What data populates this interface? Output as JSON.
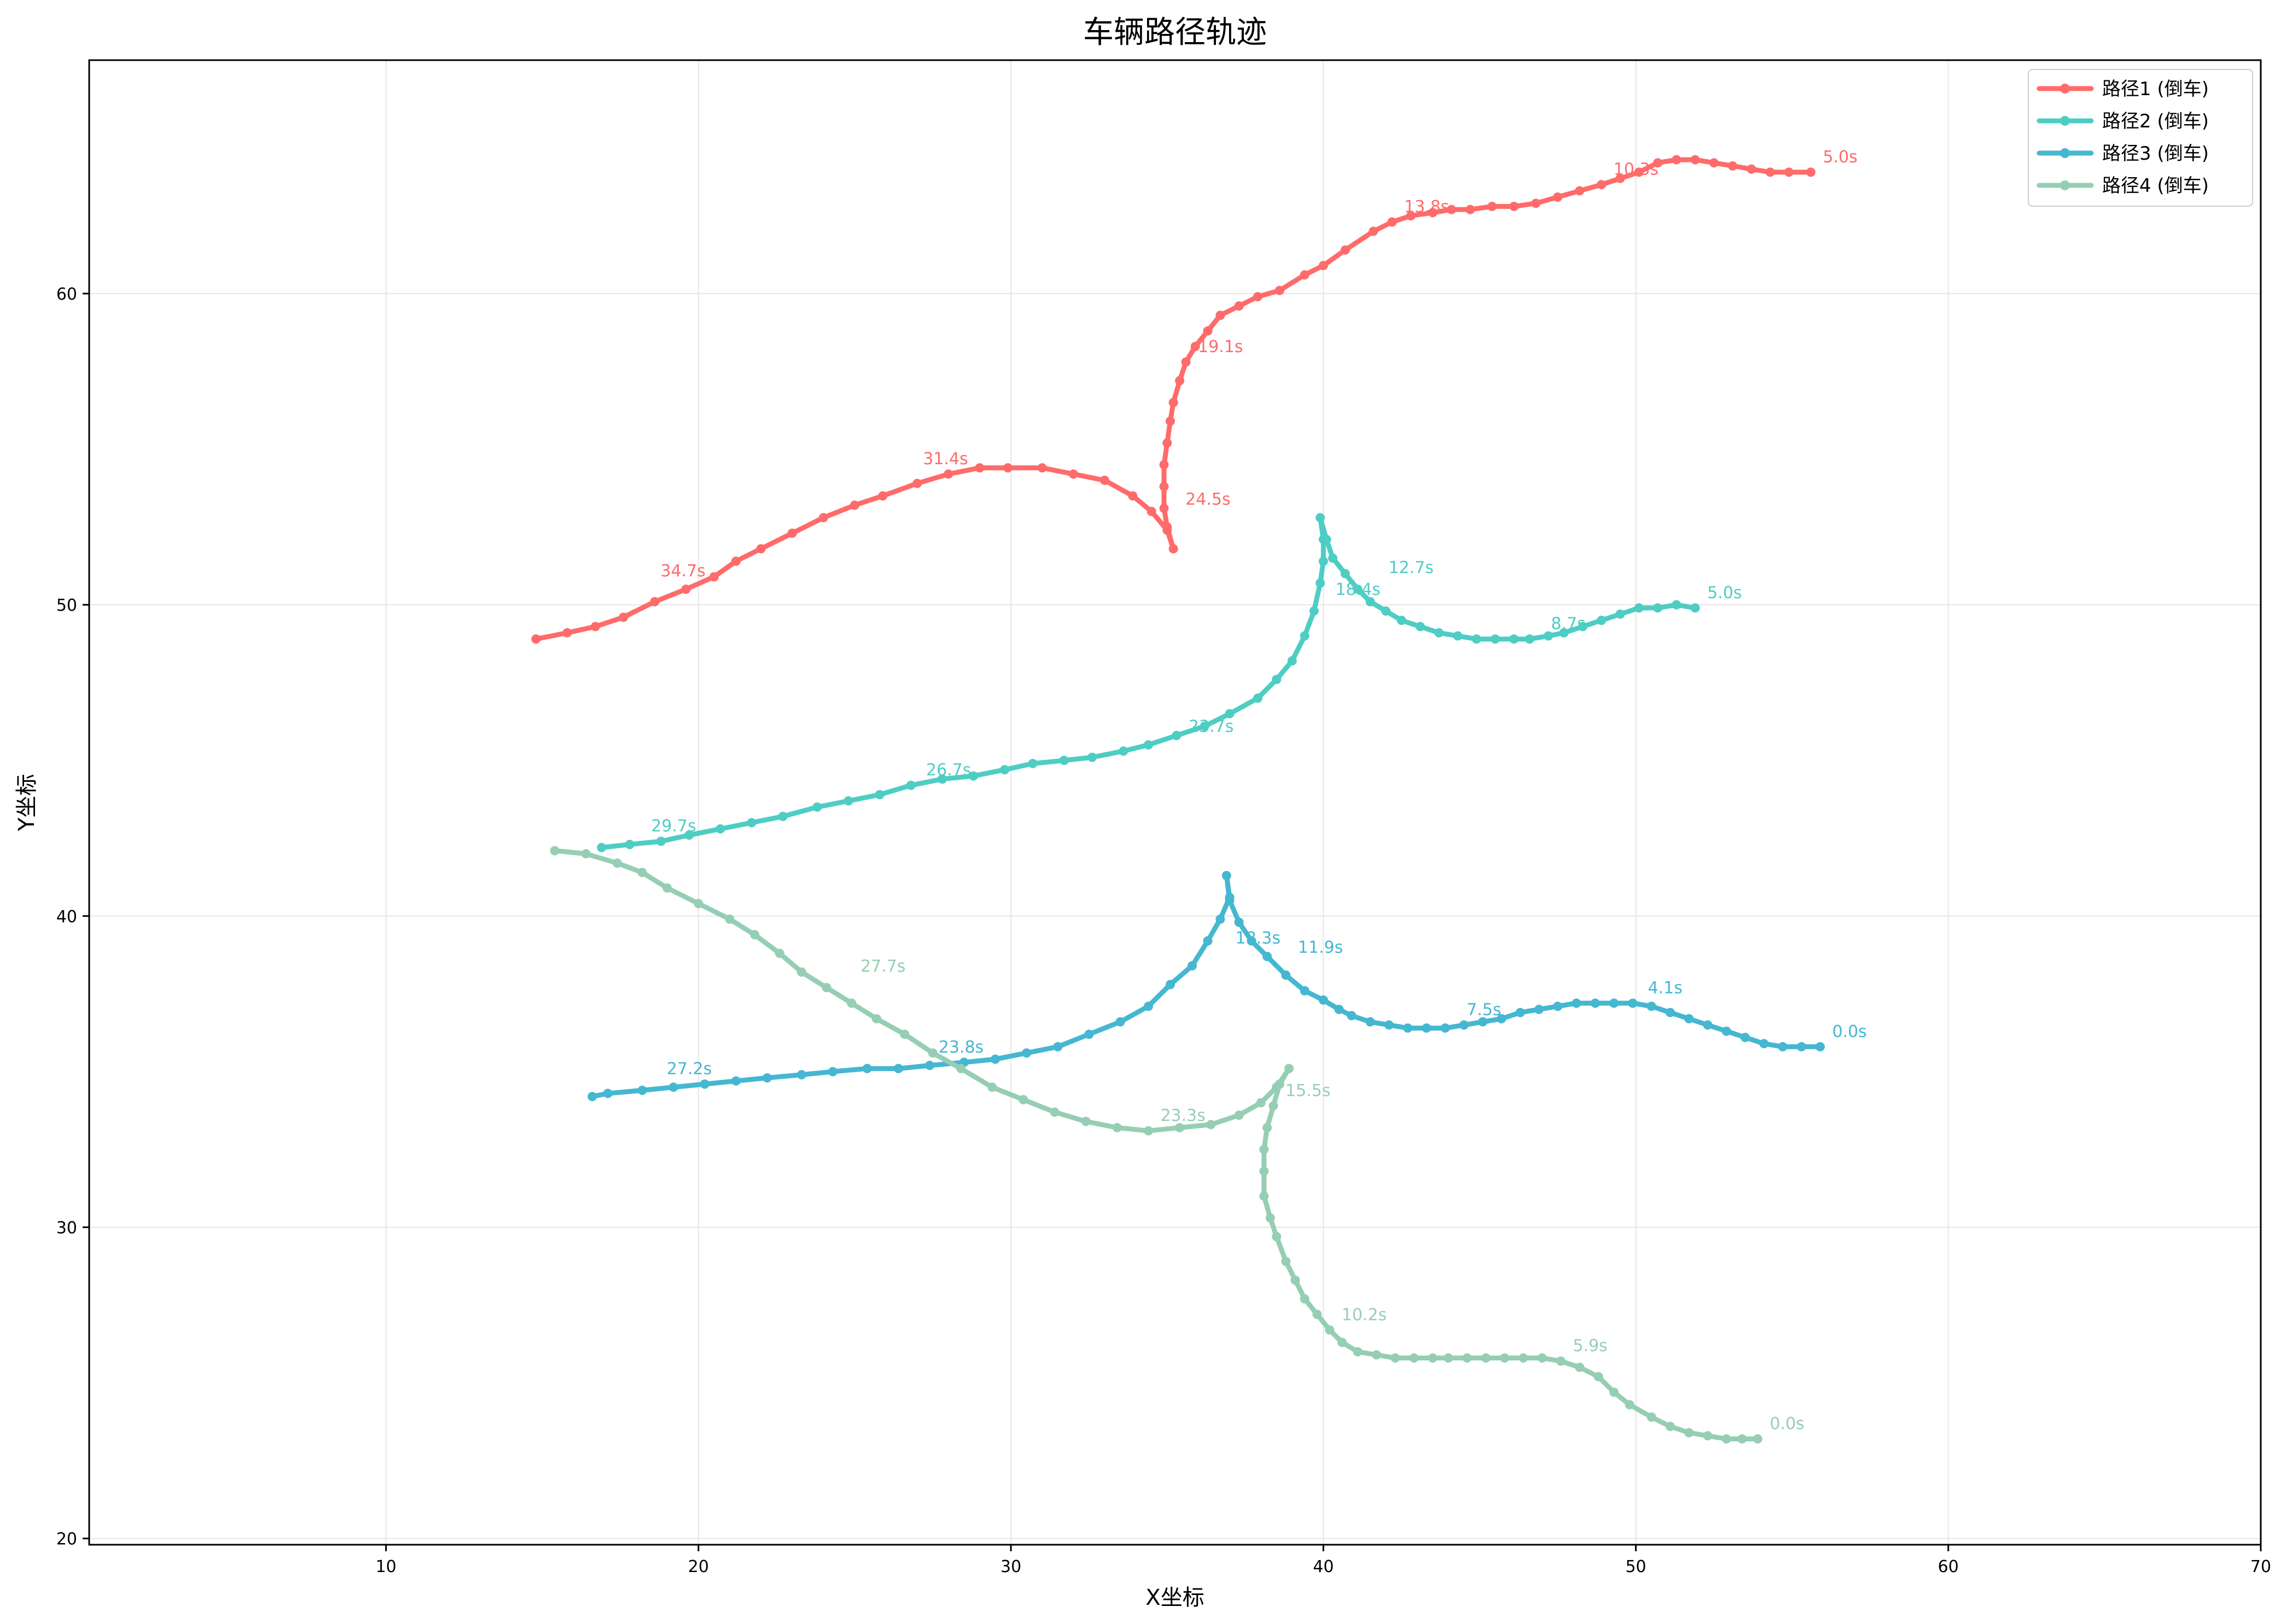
{
  "chart_data": {
    "type": "line",
    "title": "车辆路径轨迹",
    "xlabel": "X坐标",
    "ylabel": "Y坐标",
    "xlim": [
      0.5,
      70
    ],
    "ylim": [
      19.8,
      67.5
    ],
    "xticks": [
      10,
      20,
      30,
      40,
      50,
      60,
      70
    ],
    "yticks": [
      20,
      30,
      40,
      50,
      60
    ],
    "grid": true,
    "legend_position": "top-right",
    "series": [
      {
        "name": "路径1 (倒车)",
        "color": "#FF6B6B",
        "points": [
          [
            55.6,
            63.9
          ],
          [
            54.9,
            63.9
          ],
          [
            54.3,
            63.9
          ],
          [
            53.7,
            64.0
          ],
          [
            53.1,
            64.1
          ],
          [
            52.5,
            64.2
          ],
          [
            51.9,
            64.3
          ],
          [
            51.3,
            64.3
          ],
          [
            50.7,
            64.2
          ],
          [
            50.1,
            63.9
          ],
          [
            49.5,
            63.7
          ],
          [
            48.9,
            63.5
          ],
          [
            48.2,
            63.3
          ],
          [
            47.5,
            63.1
          ],
          [
            46.8,
            62.9
          ],
          [
            46.1,
            62.8
          ],
          [
            45.4,
            62.8
          ],
          [
            44.7,
            62.7
          ],
          [
            44.1,
            62.7
          ],
          [
            43.5,
            62.6
          ],
          [
            42.8,
            62.5
          ],
          [
            42.2,
            62.3
          ],
          [
            41.6,
            62.0
          ],
          [
            40.7,
            61.4
          ],
          [
            40.0,
            60.9
          ],
          [
            39.4,
            60.6
          ],
          [
            38.6,
            60.1
          ],
          [
            37.9,
            59.9
          ],
          [
            37.3,
            59.6
          ],
          [
            36.7,
            59.3
          ],
          [
            36.3,
            58.8
          ],
          [
            35.9,
            58.3
          ],
          [
            35.6,
            57.8
          ],
          [
            35.4,
            57.2
          ],
          [
            35.2,
            56.5
          ],
          [
            35.1,
            55.9
          ],
          [
            35.0,
            55.2
          ],
          [
            34.9,
            54.5
          ],
          [
            34.9,
            53.8
          ],
          [
            34.9,
            53.1
          ],
          [
            35.0,
            52.5
          ],
          [
            35.2,
            51.8
          ],
          [
            35.0,
            52.4
          ],
          [
            34.5,
            53.0
          ],
          [
            33.9,
            53.5
          ],
          [
            33.0,
            54.0
          ],
          [
            32.0,
            54.2
          ],
          [
            31.0,
            54.4
          ],
          [
            29.9,
            54.4
          ],
          [
            29.0,
            54.4
          ],
          [
            28.0,
            54.2
          ],
          [
            27.0,
            53.9
          ],
          [
            25.9,
            53.5
          ],
          [
            25.0,
            53.2
          ],
          [
            24.0,
            52.8
          ],
          [
            23.0,
            52.3
          ],
          [
            22.0,
            51.8
          ],
          [
            21.2,
            51.4
          ],
          [
            20.5,
            50.9
          ],
          [
            19.6,
            50.5
          ],
          [
            18.6,
            50.1
          ],
          [
            17.6,
            49.6
          ],
          [
            16.7,
            49.3
          ],
          [
            15.8,
            49.1
          ],
          [
            14.8,
            48.9
          ]
        ],
        "time_labels": [
          {
            "x": 55.6,
            "y": 63.9,
            "text": "5.0s"
          },
          {
            "x": 48.9,
            "y": 63.5,
            "text": "10.3s"
          },
          {
            "x": 42.2,
            "y": 62.3,
            "text": "13.8s"
          },
          {
            "x": 35.6,
            "y": 57.8,
            "text": "19.1s"
          },
          {
            "x": 35.2,
            "y": 52.9,
            "text": "24.5s"
          },
          {
            "x": 26.8,
            "y": 54.2,
            "text": "31.4s"
          },
          {
            "x": 18.4,
            "y": 50.6,
            "text": "34.7s"
          }
        ]
      },
      {
        "name": "路径2 (倒车)",
        "color": "#4ECDC4",
        "points": [
          [
            51.9,
            49.9
          ],
          [
            51.3,
            50.0
          ],
          [
            50.7,
            49.9
          ],
          [
            50.1,
            49.9
          ],
          [
            49.5,
            49.7
          ],
          [
            48.9,
            49.5
          ],
          [
            48.3,
            49.3
          ],
          [
            47.7,
            49.1
          ],
          [
            47.2,
            49.0
          ],
          [
            46.6,
            48.9
          ],
          [
            46.1,
            48.9
          ],
          [
            45.5,
            48.9
          ],
          [
            44.9,
            48.9
          ],
          [
            44.3,
            49.0
          ],
          [
            43.7,
            49.1
          ],
          [
            43.1,
            49.3
          ],
          [
            42.5,
            49.5
          ],
          [
            42.0,
            49.8
          ],
          [
            41.5,
            50.1
          ],
          [
            41.1,
            50.5
          ],
          [
            40.7,
            51.0
          ],
          [
            40.3,
            51.5
          ],
          [
            40.1,
            52.1
          ],
          [
            39.9,
            52.8
          ],
          [
            40.0,
            52.1
          ],
          [
            40.0,
            51.4
          ],
          [
            39.9,
            50.7
          ],
          [
            39.7,
            49.8
          ],
          [
            39.4,
            49.0
          ],
          [
            39.0,
            48.2
          ],
          [
            38.5,
            47.6
          ],
          [
            37.9,
            47.0
          ],
          [
            37.0,
            46.5
          ],
          [
            36.2,
            46.1
          ],
          [
            35.3,
            45.8
          ],
          [
            34.4,
            45.5
          ],
          [
            33.6,
            45.3
          ],
          [
            32.6,
            45.1
          ],
          [
            31.7,
            45.0
          ],
          [
            30.7,
            44.9
          ],
          [
            29.8,
            44.7
          ],
          [
            28.8,
            44.5
          ],
          [
            27.8,
            44.4
          ],
          [
            26.8,
            44.2
          ],
          [
            25.8,
            43.9
          ],
          [
            24.8,
            43.7
          ],
          [
            23.8,
            43.5
          ],
          [
            22.7,
            43.2
          ],
          [
            21.7,
            43.0
          ],
          [
            20.7,
            42.8
          ],
          [
            19.7,
            42.6
          ],
          [
            18.8,
            42.4
          ],
          [
            17.8,
            42.3
          ],
          [
            16.9,
            42.2
          ]
        ],
        "time_labels": [
          {
            "x": 51.9,
            "y": 49.9,
            "text": "5.0s"
          },
          {
            "x": 46.9,
            "y": 48.9,
            "text": "8.7s"
          },
          {
            "x": 41.7,
            "y": 50.7,
            "text": "12.7s"
          },
          {
            "x": 40.0,
            "y": 50.0,
            "text": "18.4s"
          },
          {
            "x": 35.3,
            "y": 45.6,
            "text": "23.7s"
          },
          {
            "x": 26.9,
            "y": 44.2,
            "text": "26.7s"
          },
          {
            "x": 18.1,
            "y": 42.4,
            "text": "29.7s"
          }
        ]
      },
      {
        "name": "路径3 (倒车)",
        "color": "#45B7D1",
        "points": [
          [
            55.9,
            35.8
          ],
          [
            55.3,
            35.8
          ],
          [
            54.7,
            35.8
          ],
          [
            54.1,
            35.9
          ],
          [
            53.5,
            36.1
          ],
          [
            52.9,
            36.3
          ],
          [
            52.3,
            36.5
          ],
          [
            51.7,
            36.7
          ],
          [
            51.1,
            36.9
          ],
          [
            50.5,
            37.1
          ],
          [
            49.9,
            37.2
          ],
          [
            49.3,
            37.2
          ],
          [
            48.7,
            37.2
          ],
          [
            48.1,
            37.2
          ],
          [
            47.5,
            37.1
          ],
          [
            46.9,
            37.0
          ],
          [
            46.3,
            36.9
          ],
          [
            45.7,
            36.7
          ],
          [
            45.1,
            36.6
          ],
          [
            44.5,
            36.5
          ],
          [
            43.9,
            36.4
          ],
          [
            43.3,
            36.4
          ],
          [
            42.7,
            36.4
          ],
          [
            42.1,
            36.5
          ],
          [
            41.5,
            36.6
          ],
          [
            40.9,
            36.8
          ],
          [
            40.5,
            37.0
          ],
          [
            40.0,
            37.3
          ],
          [
            39.4,
            37.6
          ],
          [
            38.8,
            38.1
          ],
          [
            38.2,
            38.7
          ],
          [
            37.7,
            39.2
          ],
          [
            37.3,
            39.8
          ],
          [
            37.0,
            40.5
          ],
          [
            36.9,
            41.3
          ],
          [
            37.0,
            40.6
          ],
          [
            36.7,
            39.9
          ],
          [
            36.3,
            39.2
          ],
          [
            35.8,
            38.4
          ],
          [
            35.1,
            37.8
          ],
          [
            34.4,
            37.1
          ],
          [
            33.5,
            36.6
          ],
          [
            32.5,
            36.2
          ],
          [
            31.5,
            35.8
          ],
          [
            30.5,
            35.6
          ],
          [
            29.5,
            35.4
          ],
          [
            28.5,
            35.3
          ],
          [
            27.4,
            35.2
          ],
          [
            26.4,
            35.1
          ],
          [
            25.4,
            35.1
          ],
          [
            24.3,
            35.0
          ],
          [
            23.3,
            34.9
          ],
          [
            22.2,
            34.8
          ],
          [
            21.2,
            34.7
          ],
          [
            20.2,
            34.6
          ],
          [
            19.2,
            34.5
          ],
          [
            18.2,
            34.4
          ],
          [
            17.1,
            34.3
          ],
          [
            16.6,
            34.2
          ]
        ],
        "time_labels": [
          {
            "x": 55.9,
            "y": 35.8,
            "text": "0.0s"
          },
          {
            "x": 50.0,
            "y": 37.2,
            "text": "4.1s"
          },
          {
            "x": 44.2,
            "y": 36.5,
            "text": "7.5s"
          },
          {
            "x": 38.8,
            "y": 38.5,
            "text": "11.9s"
          },
          {
            "x": 36.8,
            "y": 38.8,
            "text": "18.3s"
          },
          {
            "x": 27.3,
            "y": 35.3,
            "text": "23.8s"
          },
          {
            "x": 18.6,
            "y": 34.6,
            "text": "27.2s"
          }
        ]
      },
      {
        "name": "路径4 (倒车)",
        "color": "#96CEB4",
        "points": [
          [
            53.9,
            23.2
          ],
          [
            53.4,
            23.2
          ],
          [
            52.9,
            23.2
          ],
          [
            52.3,
            23.3
          ],
          [
            51.7,
            23.4
          ],
          [
            51.1,
            23.6
          ],
          [
            50.5,
            23.9
          ],
          [
            49.8,
            24.3
          ],
          [
            49.3,
            24.7
          ],
          [
            48.8,
            25.2
          ],
          [
            48.2,
            25.5
          ],
          [
            47.6,
            25.7
          ],
          [
            47.0,
            25.8
          ],
          [
            46.4,
            25.8
          ],
          [
            45.8,
            25.8
          ],
          [
            45.2,
            25.8
          ],
          [
            44.6,
            25.8
          ],
          [
            44.0,
            25.8
          ],
          [
            43.5,
            25.8
          ],
          [
            42.9,
            25.8
          ],
          [
            42.3,
            25.8
          ],
          [
            41.7,
            25.9
          ],
          [
            41.1,
            26.0
          ],
          [
            40.6,
            26.3
          ],
          [
            40.2,
            26.7
          ],
          [
            39.8,
            27.2
          ],
          [
            39.4,
            27.7
          ],
          [
            39.1,
            28.3
          ],
          [
            38.8,
            28.9
          ],
          [
            38.5,
            29.7
          ],
          [
            38.3,
            30.3
          ],
          [
            38.1,
            31.0
          ],
          [
            38.1,
            31.8
          ],
          [
            38.1,
            32.5
          ],
          [
            38.2,
            33.2
          ],
          [
            38.4,
            33.9
          ],
          [
            38.6,
            34.6
          ],
          [
            38.9,
            35.1
          ],
          [
            38.5,
            34.5
          ],
          [
            38.0,
            34.0
          ],
          [
            37.3,
            33.6
          ],
          [
            36.4,
            33.3
          ],
          [
            35.4,
            33.2
          ],
          [
            34.4,
            33.1
          ],
          [
            33.4,
            33.2
          ],
          [
            32.4,
            33.4
          ],
          [
            31.4,
            33.7
          ],
          [
            30.4,
            34.1
          ],
          [
            29.4,
            34.5
          ],
          [
            28.4,
            35.1
          ],
          [
            27.5,
            35.6
          ],
          [
            26.6,
            36.2
          ],
          [
            25.7,
            36.7
          ],
          [
            24.9,
            37.2
          ],
          [
            24.1,
            37.7
          ],
          [
            23.3,
            38.2
          ],
          [
            22.6,
            38.8
          ],
          [
            21.8,
            39.4
          ],
          [
            21.0,
            39.9
          ],
          [
            20.0,
            40.4
          ],
          [
            19.0,
            40.9
          ],
          [
            18.2,
            41.4
          ],
          [
            17.4,
            41.7
          ],
          [
            16.4,
            42.0
          ],
          [
            15.4,
            42.1
          ]
        ],
        "time_labels": [
          {
            "x": 53.9,
            "y": 23.2,
            "text": "0.0s"
          },
          {
            "x": 47.6,
            "y": 25.7,
            "text": "5.9s"
          },
          {
            "x": 40.2,
            "y": 26.7,
            "text": "10.2s"
          },
          {
            "x": 38.4,
            "y": 33.9,
            "text": "15.5s"
          },
          {
            "x": 34.4,
            "y": 33.1,
            "text": "23.3s"
          },
          {
            "x": 24.8,
            "y": 37.9,
            "text": "27.7s"
          }
        ]
      }
    ]
  }
}
